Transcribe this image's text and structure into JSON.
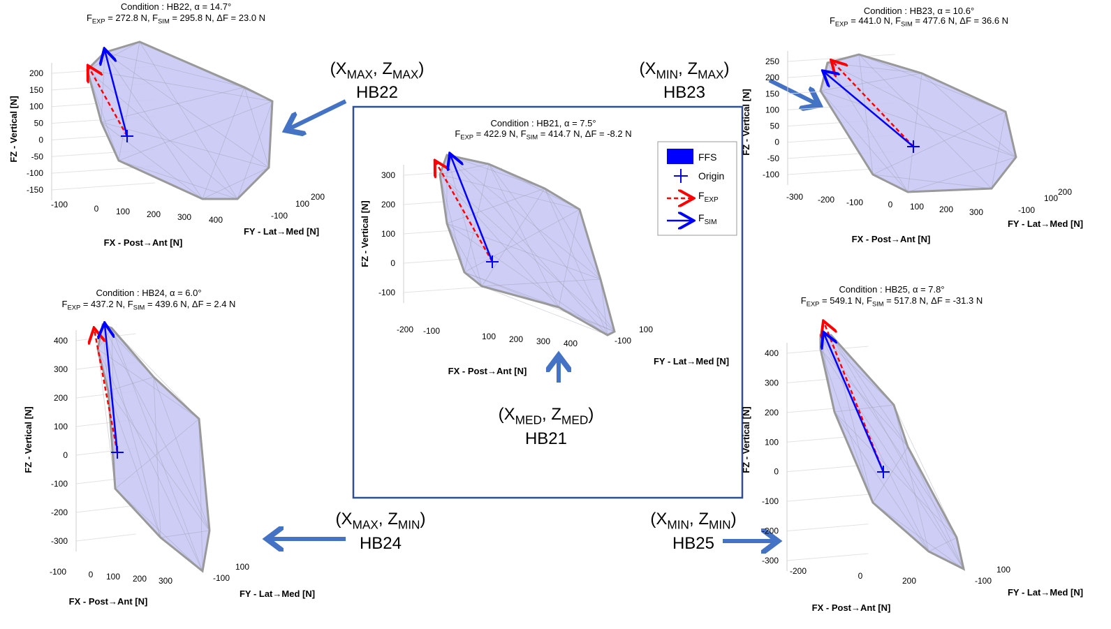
{
  "panels": [
    {
      "condition": "Condition : HB22, α = 14.7°",
      "forces": [
        "F",
        "EXP",
        " = 272.8 N, F",
        "SIM",
        " = 295.8 N, ΔF = 23.0 N"
      ],
      "zticks": [
        200,
        150,
        100,
        50,
        0,
        -50,
        -100,
        -150
      ],
      "xticks": [
        -100,
        0,
        100,
        200,
        300,
        400
      ],
      "yticks": [
        200,
        100,
        -100
      ],
      "zlabel": "FZ - Vertical [N]",
      "xlabel": "FX - Post→Ant [N]",
      "ylabel": "FY - Lat→Med [N]",
      "region": [
        "(X",
        "MAX",
        ", Z",
        "MAX",
        ")"
      ],
      "case": "HB22"
    },
    {
      "condition": "Condition : HB21, α = 7.5°",
      "forces": [
        "F",
        "EXP",
        " = 422.9 N, F",
        "SIM",
        " = 414.7 N, ΔF = -8.2 N"
      ],
      "zticks": [
        300,
        200,
        100,
        0,
        -100
      ],
      "xticks": [
        -200,
        -100,
        100,
        200,
        300,
        400
      ],
      "yticks": [
        100,
        -100
      ],
      "zlabel": "FZ - Vertical [N]",
      "xlabel": "FX - Post→Ant [N]",
      "ylabel": "FY - Lat→Med [N]",
      "region": [
        "(X",
        "MED",
        ", Z",
        "MED",
        ")"
      ],
      "case": "HB21"
    },
    {
      "condition": "Condition : HB23, α = 10.6°",
      "forces": [
        "F",
        "EXP",
        " = 441.0 N, F",
        "SIM",
        " = 477.6 N, ΔF = 36.6 N"
      ],
      "zticks": [
        250,
        200,
        150,
        100,
        50,
        0,
        -50,
        -100
      ],
      "xticks": [
        -300,
        -200,
        -100,
        0,
        100,
        200,
        300
      ],
      "yticks": [
        200,
        100,
        -100
      ],
      "zlabel": "FZ - Vertical [N]",
      "xlabel": "FX - Post→Ant [N]",
      "ylabel": "FY - Lat→Med [N]",
      "region": [
        "(X",
        "MIN",
        ", Z",
        "MAX",
        ")"
      ],
      "case": "HB23"
    },
    {
      "condition": "Condition : HB24, α = 6.0°",
      "forces": [
        "F",
        "EXP",
        " = 437.2 N, F",
        "SIM",
        " = 439.6 N, ΔF = 2.4 N"
      ],
      "zticks": [
        400,
        300,
        200,
        100,
        0,
        -100,
        -200,
        -300
      ],
      "xticks": [
        -100,
        0,
        100,
        200,
        300
      ],
      "yticks": [
        100,
        -100
      ],
      "zlabel": "FZ - Vertical [N]",
      "xlabel": "FX - Post→Ant [N]",
      "ylabel": "FY - Lat→Med [N]",
      "region": [
        "(X",
        "MAX",
        ", Z",
        "MIN",
        ")"
      ],
      "case": "HB24"
    },
    {
      "condition": "Condition : HB25, α = 7.8°",
      "forces": [
        "F",
        "EXP",
        " = 549.1 N, F",
        "SIM",
        " = 517.8 N, ΔF = -31.3 N"
      ],
      "zticks": [
        400,
        300,
        200,
        100,
        0,
        -100,
        -200,
        -300
      ],
      "xticks": [
        -200,
        0,
        200
      ],
      "yticks": [
        100,
        -100
      ],
      "zlabel": "FZ - Vertical [N]",
      "xlabel": "FX - Post→Ant [N]",
      "ylabel": "FY - Lat→Med [N]",
      "region": [
        "(X",
        "MIN",
        ", Z",
        "MIN",
        ")"
      ],
      "case": "HB25"
    }
  ],
  "legend": {
    "ffs": "FFS",
    "origin": "Origin",
    "fexp": [
      "F",
      "EXP"
    ],
    "fsim": [
      "F",
      "SIM"
    ]
  }
}
